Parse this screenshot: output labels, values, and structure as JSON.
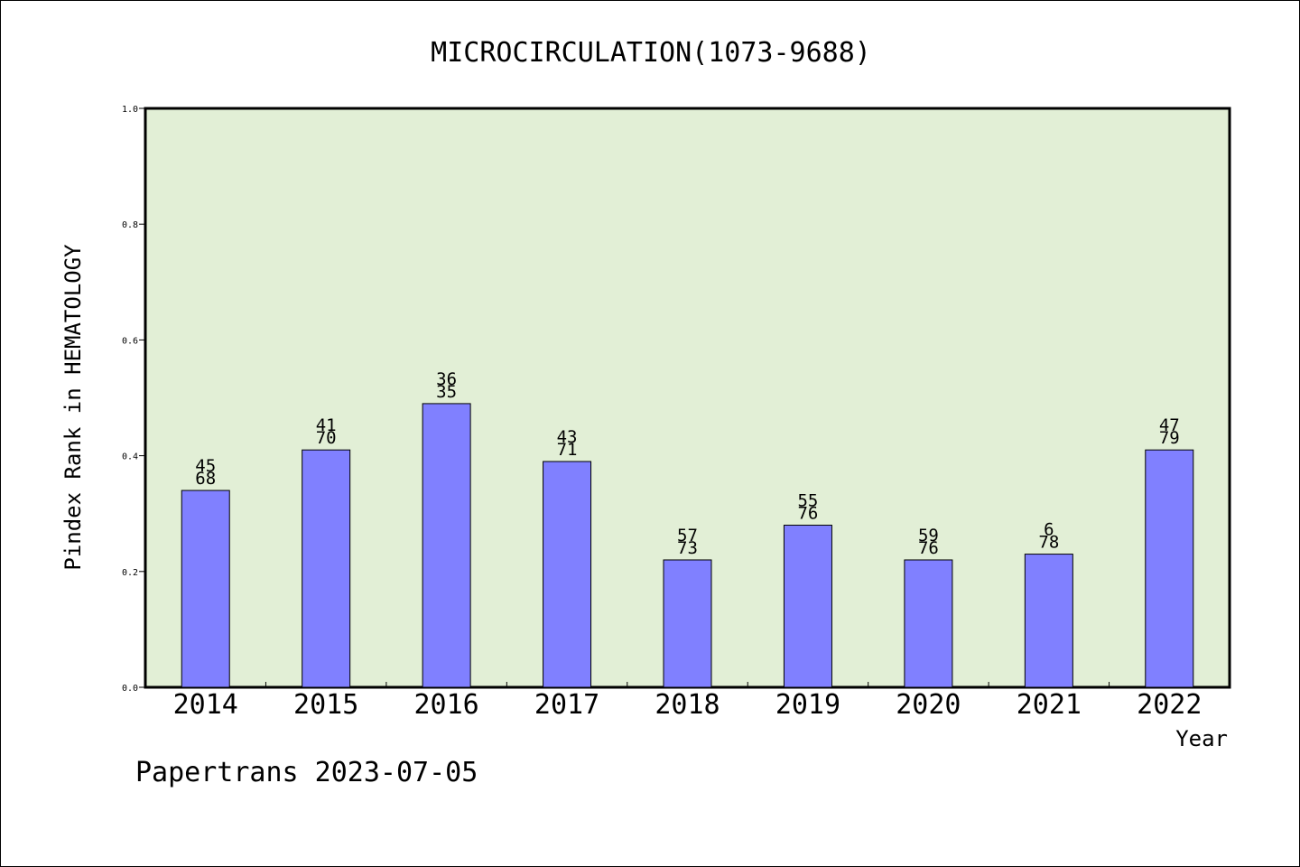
{
  "chart_data": {
    "type": "bar",
    "title": "MICROCIRCULATION(1073-9688)",
    "xlabel": "Year",
    "ylabel": "Pindex Rank in HEMATOLOGY",
    "categories": [
      "2014",
      "2015",
      "2016",
      "2017",
      "2018",
      "2019",
      "2020",
      "2021",
      "2022"
    ],
    "values": [
      0.34,
      0.41,
      0.49,
      0.39,
      0.22,
      0.28,
      0.22,
      0.23,
      0.41
    ],
    "label_top": [
      "45",
      "41",
      "36",
      "43",
      "57",
      "55",
      "59",
      "6",
      "47"
    ],
    "label_bottom": [
      "68",
      "70",
      "35",
      "71",
      "73",
      "76",
      "76",
      "78",
      "79"
    ],
    "ylim": [
      0,
      1.0
    ],
    "yticks": [
      "0.0",
      "0.2",
      "0.4",
      "0.6",
      "0.8",
      "1.0"
    ],
    "grid": false,
    "colors": {
      "plot_bg": "#e2efd6",
      "bar": "#8080ff",
      "bar_edge": "#000000"
    }
  },
  "footer": {
    "credit": "Papertrans 2023-07-05"
  }
}
